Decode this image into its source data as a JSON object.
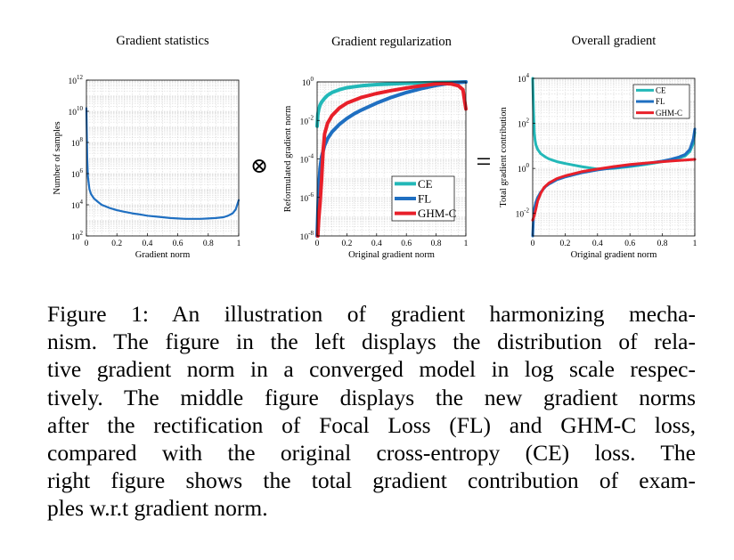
{
  "figure": {
    "operators": {
      "times": "⊗",
      "equals": "="
    }
  },
  "chart_data": [
    {
      "type": "line",
      "title": "Gradient statistics",
      "xlabel": "Gradient norm",
      "ylabel": "Number of samples",
      "xlim": [
        0,
        1
      ],
      "ylim": [
        2,
        12
      ],
      "log_y": true,
      "grid": true,
      "x_ticks": [
        "0",
        "0.2",
        "0.4",
        "0.6",
        "0.8",
        "1"
      ],
      "y_ticks": [
        {
          "base": "10",
          "exp": "2"
        },
        {
          "base": "10",
          "exp": "4"
        },
        {
          "base": "10",
          "exp": "6"
        },
        {
          "base": "10",
          "exp": "8"
        },
        {
          "base": "10",
          "exp": "10"
        },
        {
          "base": "10",
          "exp": "12"
        }
      ],
      "series": [
        {
          "color": "#1f6fc1",
          "x": [
            0,
            0.005,
            0.01,
            0.02,
            0.03,
            0.05,
            0.08,
            0.1,
            0.15,
            0.2,
            0.25,
            0.3,
            0.35,
            0.4,
            0.45,
            0.5,
            0.55,
            0.6,
            0.65,
            0.7,
            0.75,
            0.8,
            0.85,
            0.9,
            0.93,
            0.96,
            0.98,
            0.99,
            1.0
          ],
          "y": [
            10.2,
            7.0,
            5.8,
            5.0,
            4.7,
            4.4,
            4.15,
            4.0,
            3.8,
            3.65,
            3.55,
            3.45,
            3.38,
            3.3,
            3.25,
            3.2,
            3.15,
            3.12,
            3.1,
            3.1,
            3.1,
            3.12,
            3.15,
            3.2,
            3.3,
            3.45,
            3.7,
            4.0,
            4.3
          ]
        }
      ]
    },
    {
      "type": "line",
      "title": "Gradient regularization",
      "xlabel": "Original gradient norm",
      "ylabel": "Reformulated gradient norm",
      "xlim": [
        0,
        1
      ],
      "ylim": [
        -8,
        0
      ],
      "log_y": true,
      "grid": true,
      "legend_placement": "bottom-right",
      "x_ticks": [
        "0",
        "0.2",
        "0.4",
        "0.6",
        "0.8",
        "1"
      ],
      "y_ticks": [
        {
          "base": "10",
          "exp": "-8"
        },
        {
          "base": "10",
          "exp": "-6"
        },
        {
          "base": "10",
          "exp": "-4"
        },
        {
          "base": "10",
          "exp": "-2"
        },
        {
          "base": "10",
          "exp": "0"
        }
      ],
      "series": [
        {
          "name": "CE",
          "color": "#22b8b8",
          "x": [
            0.0,
            0.005,
            0.01,
            0.02,
            0.03,
            0.05,
            0.07,
            0.1,
            0.15,
            0.2,
            0.3,
            0.4,
            0.5,
            0.6,
            0.7,
            0.8,
            0.9,
            0.95,
            1.0
          ],
          "y": [
            -2.3,
            -1.7,
            -1.45,
            -1.2,
            -1.05,
            -0.85,
            -0.7,
            -0.55,
            -0.4,
            -0.3,
            -0.2,
            -0.14,
            -0.1,
            -0.07,
            -0.05,
            -0.03,
            -0.02,
            -0.01,
            0.0
          ]
        },
        {
          "name": "FL",
          "color": "#1f6fc1",
          "x": [
            0.0,
            0.01,
            0.02,
            0.03,
            0.05,
            0.07,
            0.1,
            0.15,
            0.2,
            0.25,
            0.3,
            0.4,
            0.5,
            0.6,
            0.7,
            0.8,
            0.9,
            0.95,
            1.0
          ],
          "y": [
            -8.0,
            -5.6,
            -4.5,
            -3.9,
            -3.3,
            -2.95,
            -2.6,
            -2.2,
            -1.9,
            -1.65,
            -1.45,
            -1.1,
            -0.8,
            -0.55,
            -0.35,
            -0.18,
            -0.06,
            -0.03,
            0.0
          ]
        },
        {
          "name": "GHM-C",
          "color": "#e8202a",
          "x": [
            0.005,
            0.01,
            0.02,
            0.03,
            0.04,
            0.05,
            0.07,
            0.1,
            0.15,
            0.2,
            0.3,
            0.4,
            0.5,
            0.6,
            0.7,
            0.8,
            0.85,
            0.9,
            0.95,
            0.98,
            0.99,
            1.0
          ],
          "y": [
            -8.0,
            -7.2,
            -6.3,
            -5.1,
            -3.6,
            -2.7,
            -2.15,
            -1.75,
            -1.35,
            -1.1,
            -0.8,
            -0.6,
            -0.45,
            -0.32,
            -0.2,
            -0.1,
            -0.08,
            -0.1,
            -0.2,
            -0.4,
            -0.9,
            -1.4
          ]
        }
      ]
    },
    {
      "type": "line",
      "title": "Overall gradient",
      "xlabel": "Original gradient norm",
      "ylabel": "Total gradient contribution",
      "xlim": [
        0,
        1
      ],
      "ylim": [
        -3,
        4
      ],
      "log_y": true,
      "grid": true,
      "legend_placement": "top-right",
      "x_ticks": [
        "0",
        "0.2",
        "0.4",
        "0.6",
        "0.8",
        "1"
      ],
      "y_ticks": [
        {
          "base": "10",
          "exp": "-2"
        },
        {
          "base": "10",
          "exp": "0"
        },
        {
          "base": "10",
          "exp": "2"
        },
        {
          "base": "10",
          "exp": "4"
        }
      ],
      "series": [
        {
          "name": "CE",
          "color": "#22b8b8",
          "x": [
            0.0,
            0.005,
            0.01,
            0.015,
            0.02,
            0.03,
            0.05,
            0.08,
            0.1,
            0.15,
            0.2,
            0.3,
            0.4,
            0.5,
            0.6,
            0.7,
            0.8,
            0.85,
            0.9,
            0.94,
            0.97,
            0.99,
            1.0
          ],
          "y": [
            4.0,
            2.6,
            1.6,
            1.25,
            1.05,
            0.85,
            0.65,
            0.5,
            0.42,
            0.3,
            0.22,
            0.08,
            -0.03,
            0.0,
            0.08,
            0.18,
            0.3,
            0.36,
            0.45,
            0.55,
            0.75,
            1.1,
            1.6
          ]
        },
        {
          "name": "FL",
          "color": "#1f6fc1",
          "x": [
            0.0,
            0.005,
            0.01,
            0.02,
            0.03,
            0.05,
            0.08,
            0.1,
            0.15,
            0.2,
            0.3,
            0.4,
            0.5,
            0.6,
            0.7,
            0.8,
            0.85,
            0.9,
            0.94,
            0.97,
            0.99,
            1.0
          ],
          "y": [
            -3.0,
            -2.2,
            -1.8,
            -1.5,
            -1.3,
            -1.05,
            -0.8,
            -0.7,
            -0.5,
            -0.38,
            -0.2,
            -0.07,
            0.03,
            0.12,
            0.22,
            0.33,
            0.4,
            0.5,
            0.62,
            0.85,
            1.3,
            1.75
          ]
        },
        {
          "name": "GHM-C",
          "color": "#e8202a",
          "x": [
            0.0,
            0.01,
            0.02,
            0.03,
            0.05,
            0.07,
            0.1,
            0.15,
            0.2,
            0.3,
            0.4,
            0.5,
            0.6,
            0.7,
            0.8,
            0.9,
            1.0
          ],
          "y": [
            -2.3,
            -2.1,
            -1.8,
            -1.45,
            -1.1,
            -0.85,
            -0.65,
            -0.45,
            -0.33,
            -0.15,
            -0.03,
            0.08,
            0.17,
            0.24,
            0.3,
            0.35,
            0.4
          ]
        }
      ]
    }
  ],
  "caption": {
    "lines": [
      "Figure 1: An illustration of gradient harmonizing mecha-",
      "nism. The figure in the left displays the distribution of rela-",
      "tive gradient norm in a converged model in log scale respec-",
      "tively. The middle figure displays the new gradient norms",
      "after the rectification of Focal Loss (FL) and GHM-C loss,",
      "compared with the original cross-entropy (CE) loss. The",
      "right figure shows the total gradient contribution of exam-",
      "ples w.r.t gradient norm."
    ]
  }
}
